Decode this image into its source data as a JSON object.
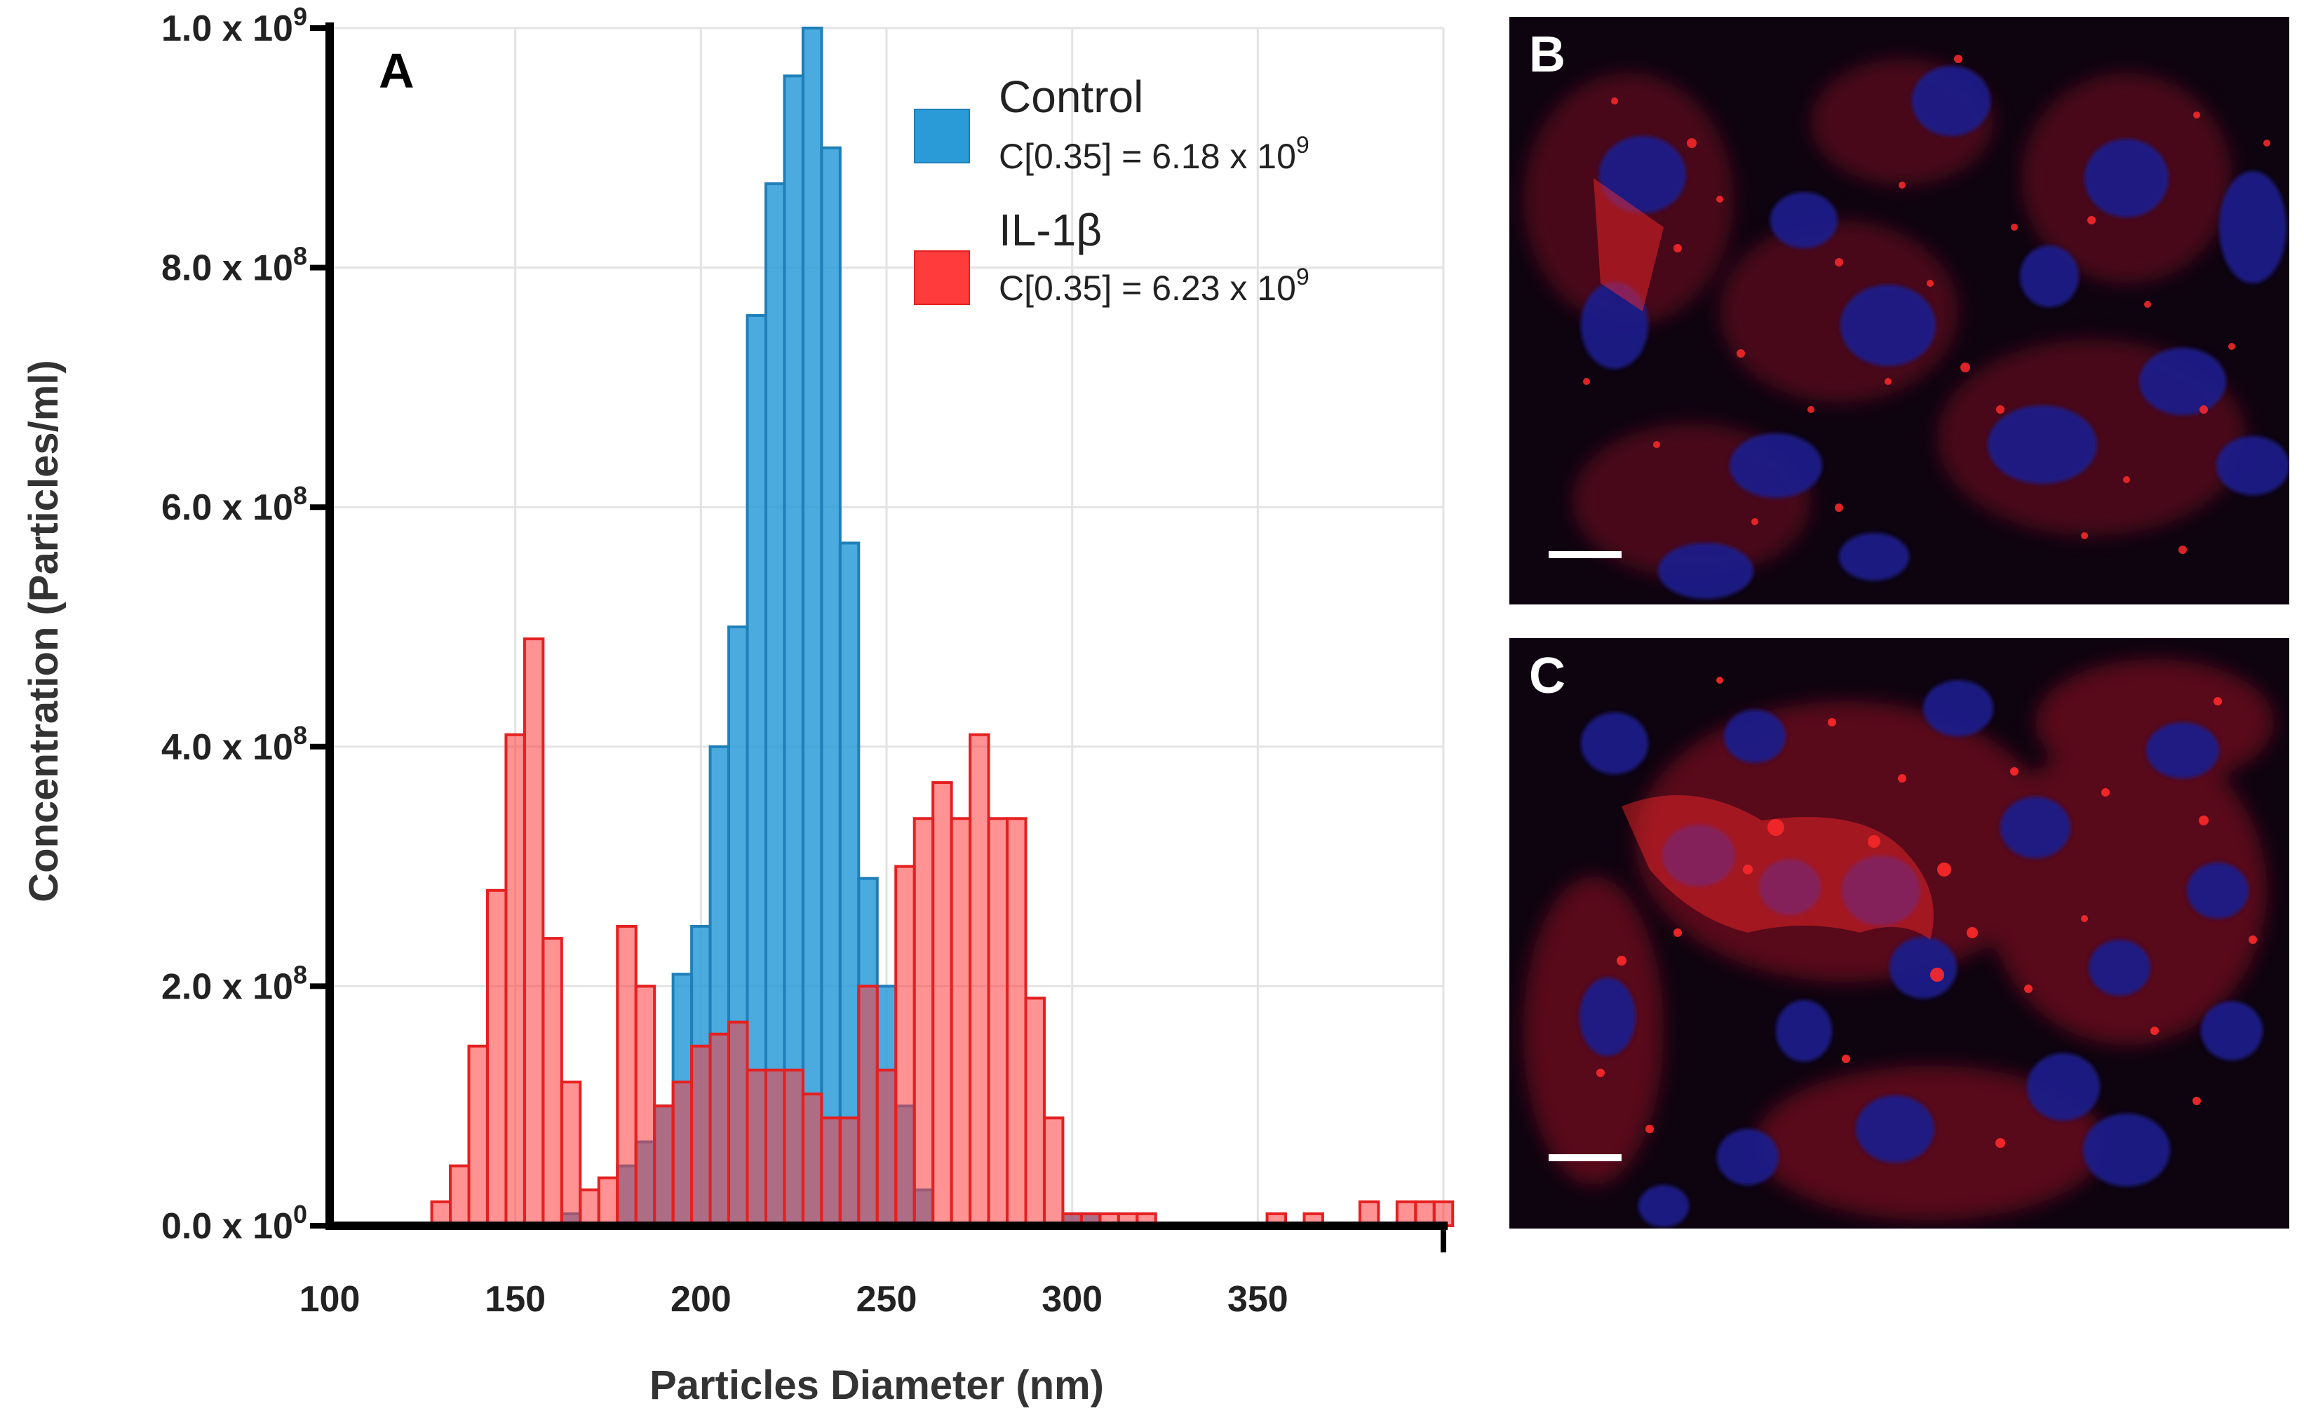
{
  "chart_data": {
    "type": "bar",
    "panel_label": "A",
    "title": "",
    "xlabel": "Particles Diameter (nm)",
    "ylabel": "Concentration (Particles/ml)",
    "xlim": [
      100,
      400
    ],
    "ylim": [
      0,
      1000000000
    ],
    "x_ticks": [
      {
        "value": 100,
        "label": "100"
      },
      {
        "value": 150,
        "label": "150"
      },
      {
        "value": 200,
        "label": "200"
      },
      {
        "value": 250,
        "label": "250"
      },
      {
        "value": 300,
        "label": "300"
      },
      {
        "value": 350,
        "label": "350"
      }
    ],
    "y_ticks": [
      {
        "value": 0,
        "mantissa": "0.0 x 10",
        "exp": "0"
      },
      {
        "value": 200000000,
        "mantissa": "2.0 x 10",
        "exp": "8"
      },
      {
        "value": 400000000,
        "mantissa": "4.0 x 10",
        "exp": "8"
      },
      {
        "value": 600000000,
        "mantissa": "6.0 x 10",
        "exp": "8"
      },
      {
        "value": 800000000,
        "mantissa": "8.0 x 10",
        "exp": "8"
      },
      {
        "value": 1000000000,
        "mantissa": "1.0 x 10",
        "exp": "9"
      }
    ],
    "grid": true,
    "bin_width_nm": 5,
    "legend_position": "top-right",
    "series": [
      {
        "name": "Control",
        "color": "#2b9bd8",
        "stroke": "#1f7fb8",
        "stat_text": "C[0.35] = 6.18 x 10",
        "stat_exp": "9",
        "x": [
          165,
          180,
          185,
          190,
          195,
          200,
          205,
          210,
          215,
          220,
          225,
          230,
          235,
          240,
          245,
          250,
          255,
          260,
          265,
          300,
          305
        ],
        "values": [
          10000000,
          50000000,
          70000000,
          100000000,
          210000000,
          250000000,
          400000000,
          500000000,
          760000000,
          870000000,
          960000000,
          1000000000,
          900000000,
          570000000,
          290000000,
          200000000,
          100000000,
          30000000,
          0,
          10000000,
          10000000
        ]
      },
      {
        "name": "IL-1β",
        "color": "#ff3b3b",
        "stroke": "#e52020",
        "stat_text": "C[0.35] = 6.23 x 10",
        "stat_exp": "9",
        "x": [
          130,
          135,
          140,
          145,
          150,
          155,
          160,
          165,
          170,
          175,
          180,
          185,
          190,
          195,
          200,
          205,
          210,
          215,
          220,
          225,
          230,
          235,
          240,
          245,
          250,
          255,
          260,
          265,
          270,
          275,
          280,
          285,
          290,
          295,
          300,
          305,
          310,
          315,
          320,
          355,
          365,
          380,
          390,
          395,
          400
        ],
        "values": [
          20000000,
          50000000,
          150000000,
          280000000,
          410000000,
          490000000,
          240000000,
          120000000,
          30000000,
          40000000,
          250000000,
          200000000,
          100000000,
          120000000,
          150000000,
          160000000,
          170000000,
          130000000,
          130000000,
          130000000,
          110000000,
          90000000,
          90000000,
          200000000,
          130000000,
          300000000,
          340000000,
          370000000,
          340000000,
          410000000,
          340000000,
          340000000,
          190000000,
          90000000,
          10000000,
          10000000,
          10000000,
          10000000,
          10000000,
          10000000,
          10000000,
          20000000,
          20000000,
          20000000,
          20000000
        ]
      }
    ]
  },
  "micrographs": [
    {
      "label": "B",
      "description_icon": "fluorescence-micrograph-control"
    },
    {
      "label": "C",
      "description_icon": "fluorescence-micrograph-il1b"
    }
  ],
  "colors": {
    "control": "#2b9bd8",
    "il1b": "#ff3b3b",
    "grid": "#e3e3e3",
    "axis": "#000000",
    "nucleus": "#2b2f9e",
    "vesicle": "#ff2a2a"
  }
}
